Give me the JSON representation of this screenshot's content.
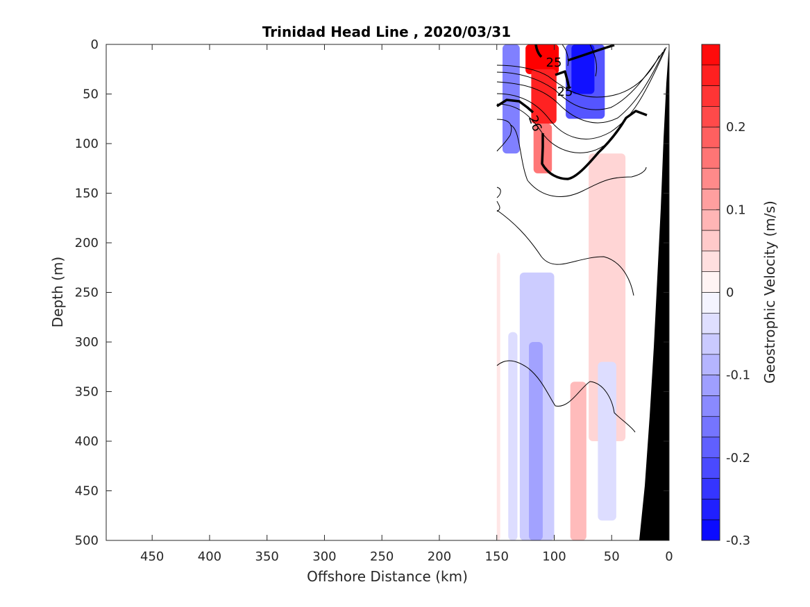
{
  "chart_data": {
    "type": "heatmap",
    "title": "Trinidad Head Line , 2020/03/31",
    "xlabel": "Offshore Distance (km)",
    "ylabel": "Depth (m)",
    "xlim": [
      490,
      0
    ],
    "ylim": [
      0,
      500
    ],
    "x_reversed": true,
    "y_reversed": true,
    "xticks": [
      450,
      400,
      350,
      300,
      250,
      200,
      150,
      100,
      50,
      0
    ],
    "yticks": [
      0,
      50,
      100,
      150,
      200,
      250,
      300,
      350,
      400,
      450,
      500
    ],
    "colorbar": {
      "label": "Geostrophic Velocity (m/s)",
      "range": [
        -0.3,
        0.3
      ],
      "levels": 24,
      "ticks": [
        0.2,
        0.1,
        0,
        -0.1,
        -0.2,
        -0.3
      ],
      "colors": {
        "negative": "#0000ff",
        "zero": "#ffffff",
        "positive": "#ff0000"
      }
    },
    "velocity_patches": [
      {
        "x": [
          150,
          147
        ],
        "y": [
          210,
          500
        ],
        "value": 0.03
      },
      {
        "x": [
          145,
          130
        ],
        "y": [
          0,
          110
        ],
        "value": -0.15
      },
      {
        "x": [
          140,
          132
        ],
        "y": [
          290,
          500
        ],
        "value": -0.04
      },
      {
        "x": [
          125,
          96
        ],
        "y": [
          0,
          30
        ],
        "value": 0.3
      },
      {
        "x": [
          120,
          98
        ],
        "y": [
          25,
          80
        ],
        "value": 0.26
      },
      {
        "x": [
          118,
          102
        ],
        "y": [
          80,
          130
        ],
        "value": 0.16
      },
      {
        "x": [
          130,
          100
        ],
        "y": [
          230,
          500
        ],
        "value": -0.06
      },
      {
        "x": [
          122,
          110
        ],
        "y": [
          300,
          500
        ],
        "value": -0.11
      },
      {
        "x": [
          90,
          56
        ],
        "y": [
          0,
          75
        ],
        "value": -0.2
      },
      {
        "x": [
          85,
          65
        ],
        "y": [
          0,
          50
        ],
        "value": -0.28
      },
      {
        "x": [
          70,
          38
        ],
        "y": [
          110,
          400
        ],
        "value": 0.05
      },
      {
        "x": [
          86,
          72
        ],
        "y": [
          340,
          500
        ],
        "value": 0.08
      },
      {
        "x": [
          62,
          46
        ],
        "y": [
          320,
          480
        ],
        "value": -0.04
      }
    ],
    "isopycnal_labels": [
      "25",
      "25",
      "26"
    ],
    "shelf_fill": "#000000"
  }
}
